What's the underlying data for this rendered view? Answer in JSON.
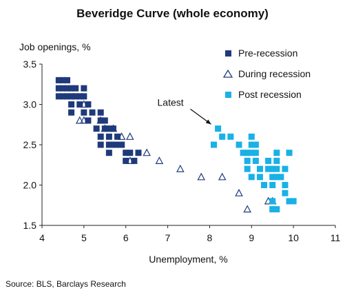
{
  "chart_data": {
    "type": "scatter",
    "title": "Beveridge Curve (whole economy)",
    "xlabel": "Unemployment, %",
    "ylabel": "Job openings, %",
    "xlim": [
      4,
      11
    ],
    "ylim": [
      1.5,
      3.5
    ],
    "xticks": [
      "4",
      "5",
      "6",
      "7",
      "8",
      "9",
      "10",
      "11"
    ],
    "yticks": [
      "1.5",
      "2.0",
      "2.5",
      "3.0",
      "3.5"
    ],
    "grid": false,
    "legend_position": "top-right",
    "annotation": {
      "text": "Latest",
      "x": 8.1,
      "y": 2.72
    },
    "source": "Source: BLS, Barclays Research",
    "series": [
      {
        "name": "Pre-recession",
        "marker": "filled-square",
        "color": "#1f3a7a",
        "points": [
          [
            4.4,
            3.3
          ],
          [
            4.5,
            3.3
          ],
          [
            4.6,
            3.3
          ],
          [
            4.4,
            3.2
          ],
          [
            4.5,
            3.2
          ],
          [
            4.6,
            3.2
          ],
          [
            4.7,
            3.2
          ],
          [
            4.8,
            3.2
          ],
          [
            5.0,
            3.2
          ],
          [
            4.4,
            3.1
          ],
          [
            4.5,
            3.1
          ],
          [
            4.6,
            3.1
          ],
          [
            4.7,
            3.1
          ],
          [
            4.8,
            3.1
          ],
          [
            4.9,
            3.1
          ],
          [
            5.0,
            3.1
          ],
          [
            4.7,
            3.0
          ],
          [
            4.9,
            3.0
          ],
          [
            5.1,
            3.0
          ],
          [
            4.7,
            2.9
          ],
          [
            5.0,
            2.9
          ],
          [
            5.2,
            2.9
          ],
          [
            5.4,
            2.9
          ],
          [
            5.1,
            2.8
          ],
          [
            5.4,
            2.8
          ],
          [
            5.5,
            2.8
          ],
          [
            5.3,
            2.7
          ],
          [
            5.5,
            2.7
          ],
          [
            5.6,
            2.7
          ],
          [
            5.7,
            2.7
          ],
          [
            5.4,
            2.6
          ],
          [
            5.6,
            2.6
          ],
          [
            5.8,
            2.6
          ],
          [
            5.4,
            2.5
          ],
          [
            5.6,
            2.5
          ],
          [
            5.7,
            2.5
          ],
          [
            5.8,
            2.5
          ],
          [
            5.9,
            2.5
          ],
          [
            5.6,
            2.4
          ],
          [
            6.0,
            2.4
          ],
          [
            6.1,
            2.4
          ],
          [
            6.3,
            2.4
          ],
          [
            6.0,
            2.3
          ],
          [
            6.2,
            2.3
          ],
          [
            5.9,
            2.5
          ]
        ]
      },
      {
        "name": "During recession",
        "marker": "open-triangle",
        "color": "#1f3a7a",
        "points": [
          [
            5.0,
            3.0
          ],
          [
            4.9,
            2.8
          ],
          [
            5.0,
            2.8
          ],
          [
            5.4,
            2.8
          ],
          [
            5.5,
            2.7
          ],
          [
            5.7,
            2.7
          ],
          [
            5.9,
            2.6
          ],
          [
            6.1,
            2.6
          ],
          [
            6.5,
            2.4
          ],
          [
            6.1,
            2.3
          ],
          [
            6.8,
            2.3
          ],
          [
            7.3,
            2.2
          ],
          [
            7.8,
            2.1
          ],
          [
            8.3,
            2.1
          ],
          [
            8.7,
            1.9
          ],
          [
            8.9,
            1.7
          ],
          [
            9.4,
            1.8
          ],
          [
            9.5,
            1.8
          ]
        ]
      },
      {
        "name": "Post recession",
        "marker": "filled-square",
        "color": "#19b1e6",
        "points": [
          [
            8.2,
            2.7
          ],
          [
            8.3,
            2.6
          ],
          [
            8.5,
            2.6
          ],
          [
            8.1,
            2.5
          ],
          [
            8.7,
            2.5
          ],
          [
            8.8,
            2.4
          ],
          [
            8.9,
            2.4
          ],
          [
            9.0,
            2.4
          ],
          [
            9.1,
            2.4
          ],
          [
            9.0,
            2.5
          ],
          [
            9.1,
            2.5
          ],
          [
            9.0,
            2.6
          ],
          [
            9.9,
            2.4
          ],
          [
            9.6,
            2.4
          ],
          [
            8.9,
            2.3
          ],
          [
            9.1,
            2.3
          ],
          [
            9.4,
            2.3
          ],
          [
            9.6,
            2.3
          ],
          [
            8.9,
            2.2
          ],
          [
            9.2,
            2.2
          ],
          [
            9.4,
            2.2
          ],
          [
            9.5,
            2.2
          ],
          [
            9.6,
            2.2
          ],
          [
            9.8,
            2.2
          ],
          [
            9.0,
            2.1
          ],
          [
            9.2,
            2.1
          ],
          [
            9.5,
            2.1
          ],
          [
            9.6,
            2.1
          ],
          [
            9.7,
            2.1
          ],
          [
            9.3,
            2.0
          ],
          [
            9.5,
            2.0
          ],
          [
            9.8,
            2.0
          ],
          [
            9.8,
            1.9
          ],
          [
            9.9,
            1.8
          ],
          [
            10.0,
            1.8
          ],
          [
            9.5,
            1.7
          ],
          [
            9.6,
            1.7
          ],
          [
            9.5,
            1.8
          ]
        ]
      }
    ]
  }
}
